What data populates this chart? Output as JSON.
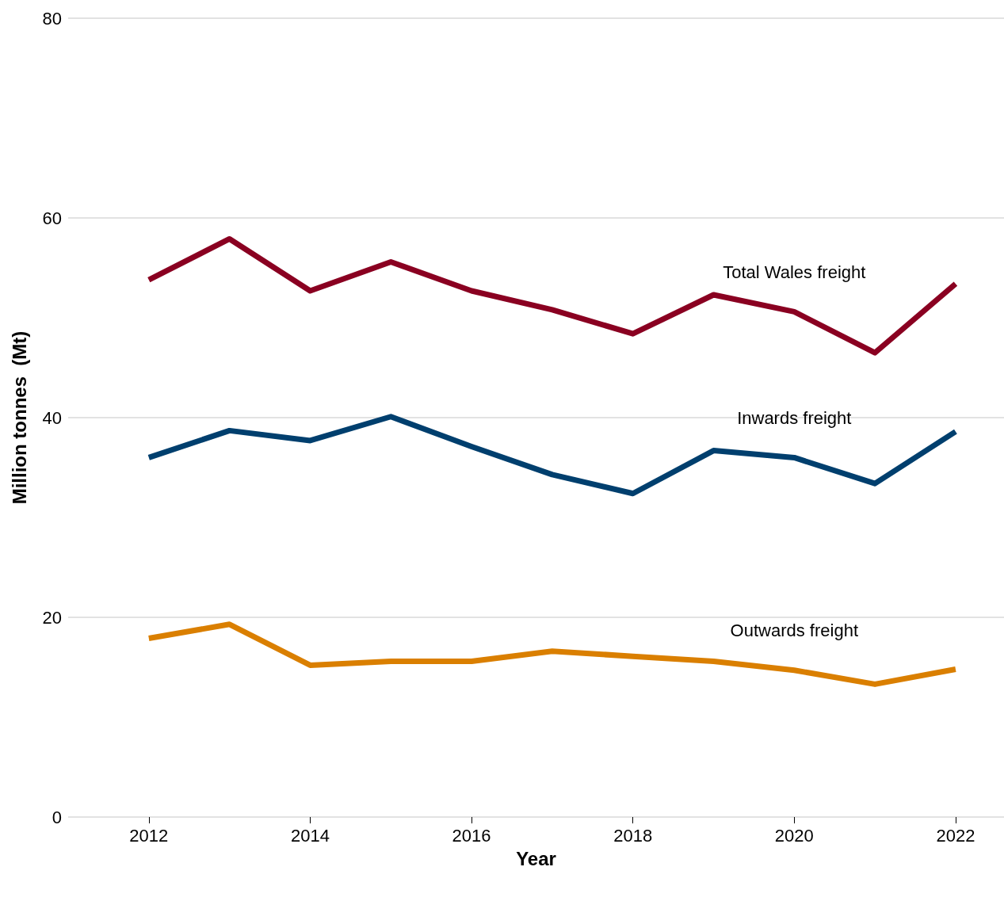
{
  "chart_data": {
    "type": "line",
    "xlabel": "Year",
    "ylabel": "Million tonnes  (Mt)",
    "x": [
      2012,
      2013,
      2014,
      2015,
      2016,
      2017,
      2018,
      2019,
      2020,
      2021,
      2022
    ],
    "series": [
      {
        "name": "Total Wales freight",
        "color": "#8a0021",
        "values": [
          53.8,
          57.9,
          52.7,
          55.6,
          52.7,
          50.8,
          48.4,
          52.3,
          50.6,
          46.5,
          53.4
        ]
      },
      {
        "name": "Inwards freight",
        "color": "#003f6e",
        "values": [
          36.0,
          38.7,
          37.7,
          40.1,
          37.1,
          34.3,
          32.4,
          36.7,
          36.0,
          33.4,
          38.6
        ]
      },
      {
        "name": "Outwards freight",
        "color": "#da7f00",
        "values": [
          17.9,
          19.3,
          15.2,
          15.6,
          15.6,
          16.6,
          16.1,
          15.6,
          14.7,
          13.3,
          14.8
        ]
      }
    ],
    "xlim": [
      2011,
      2022.6
    ],
    "xticks": [
      2012,
      2014,
      2016,
      2018,
      2020,
      2022
    ],
    "ylim": [
      0,
      80
    ],
    "yticks": [
      0,
      20,
      40,
      60,
      80
    ],
    "grid": "y",
    "legend": false,
    "marker": "none",
    "line_style": "solid"
  }
}
